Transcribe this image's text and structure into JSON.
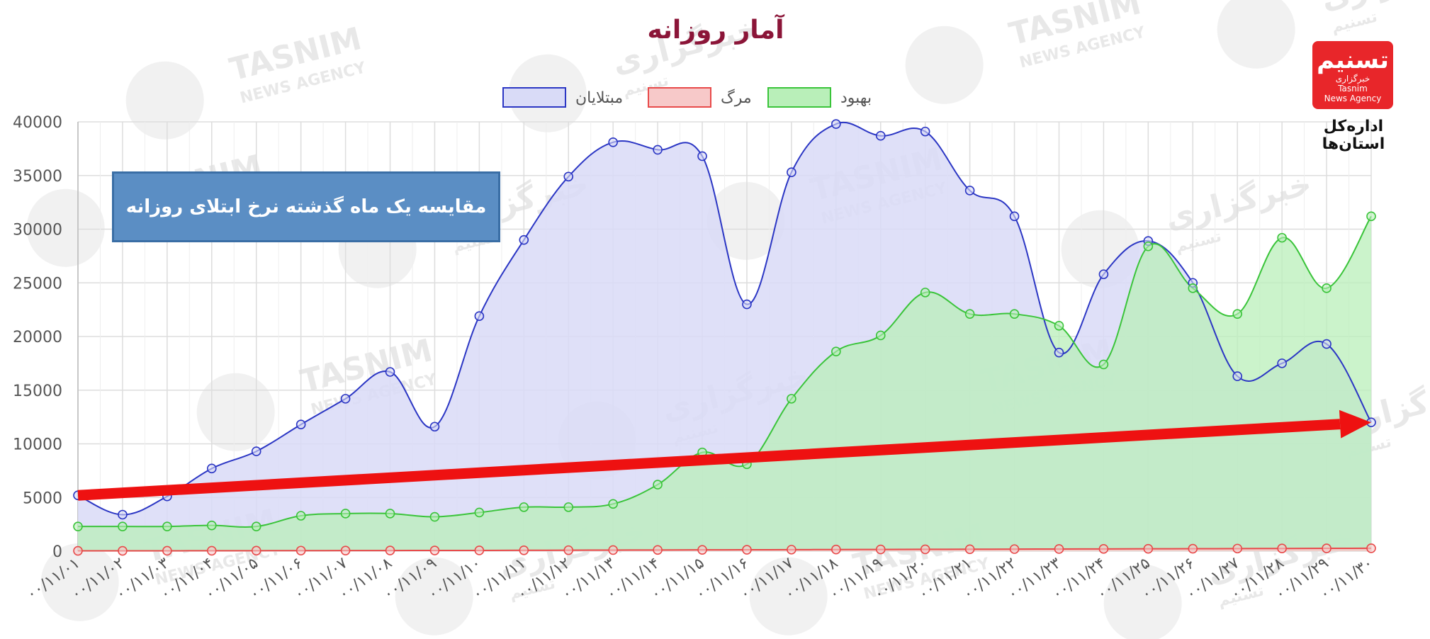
{
  "chart_data": {
    "type": "line",
    "title": "آمار روزانه",
    "categories": [
      "۰۰/۱۱/۰۱",
      "۰۰/۱۱/۰۲",
      "۰۰/۱۱/۰۳",
      "۰۰/۱۱/۰۴",
      "۰۰/۱۱/۰۵",
      "۰۰/۱۱/۰۶",
      "۰۰/۱۱/۰۷",
      "۰۰/۱۱/۰۸",
      "۰۰/۱۱/۰۹",
      "۰۰/۱۱/۱۰",
      "۰۰/۱۱/۱۱",
      "۰۰/۱۱/۱۲",
      "۰۰/۱۱/۱۳",
      "۰۰/۱۱/۱۴",
      "۰۰/۱۱/۱۵",
      "۰۰/۱۱/۱۶",
      "۰۰/۱۱/۱۷",
      "۰۰/۱۱/۱۸",
      "۰۰/۱۱/۱۹",
      "۰۰/۱۱/۲۰",
      "۰۰/۱۱/۲۱",
      "۰۰/۱۱/۲۲",
      "۰۰/۱۱/۲۳",
      "۰۰/۱۱/۲۴",
      "۰۰/۱۱/۲۵",
      "۰۰/۱۱/۲۶",
      "۰۰/۱۱/۲۷",
      "۰۰/۱۱/۲۸",
      "۰۰/۱۱/۲۹",
      "۰۰/۱۱/۳۰"
    ],
    "y_ticks": [
      "0",
      "5000",
      "10000",
      "15000",
      "20000",
      "25000",
      "30000",
      "35000",
      "40000"
    ],
    "ylim": [
      0,
      40000
    ],
    "grid": true,
    "legend_position": "top-center",
    "series": [
      {
        "name": "مبتلایان",
        "color": "#2b36c4",
        "fill": "#d9dbf7",
        "values": [
          5200,
          3400,
          5100,
          7700,
          9300,
          11800,
          14200,
          16700,
          11600,
          21900,
          29000,
          34900,
          38100,
          37400,
          36800,
          23000,
          35300,
          39800,
          38700,
          39100,
          33600,
          31200,
          18500,
          25800,
          28900,
          25000,
          16300,
          17500,
          19300,
          12000
        ]
      },
      {
        "name": "مرگ",
        "color": "#e84a4a",
        "fill": "#f7c9c9",
        "values": [
          30,
          30,
          35,
          40,
          45,
          50,
          55,
          60,
          65,
          70,
          80,
          90,
          100,
          110,
          120,
          130,
          140,
          150,
          160,
          170,
          180,
          190,
          200,
          210,
          220,
          230,
          240,
          250,
          260,
          270
        ]
      },
      {
        "name": "بهبود",
        "color": "#3ac43a",
        "fill": "#b9efb9",
        "values": [
          2300,
          2300,
          2300,
          2400,
          2300,
          3300,
          3500,
          3500,
          3200,
          3600,
          4100,
          4100,
          4400,
          6200,
          9200,
          8100,
          14200,
          18600,
          20100,
          24100,
          22100,
          22100,
          21000,
          17400,
          28400,
          24500,
          22100,
          29200,
          24500,
          31200
        ]
      }
    ],
    "annotation": "مقایسه یک ماه گذشته نرخ ابتلای روزانه",
    "trend_arrow": {
      "from": {
        "x": "۰۰/۱۱/۰۱",
        "y": 5200
      },
      "to": {
        "x": "۰۰/۱۱/۳۰",
        "y": 12000
      },
      "color": "#ee1111"
    }
  },
  "logo": {
    "mark": "تسنیم",
    "line1": "خبرگزاری",
    "line2": "Tasnim",
    "line3": "News Agency",
    "caption": "اداره‌کل استان‌ها"
  },
  "watermark": {
    "text_latin": "TASNIM",
    "text_latin_sub": "NEWS AGENCY",
    "text_persian": "خبرگزاری",
    "text_persian2": "تسنیم"
  }
}
